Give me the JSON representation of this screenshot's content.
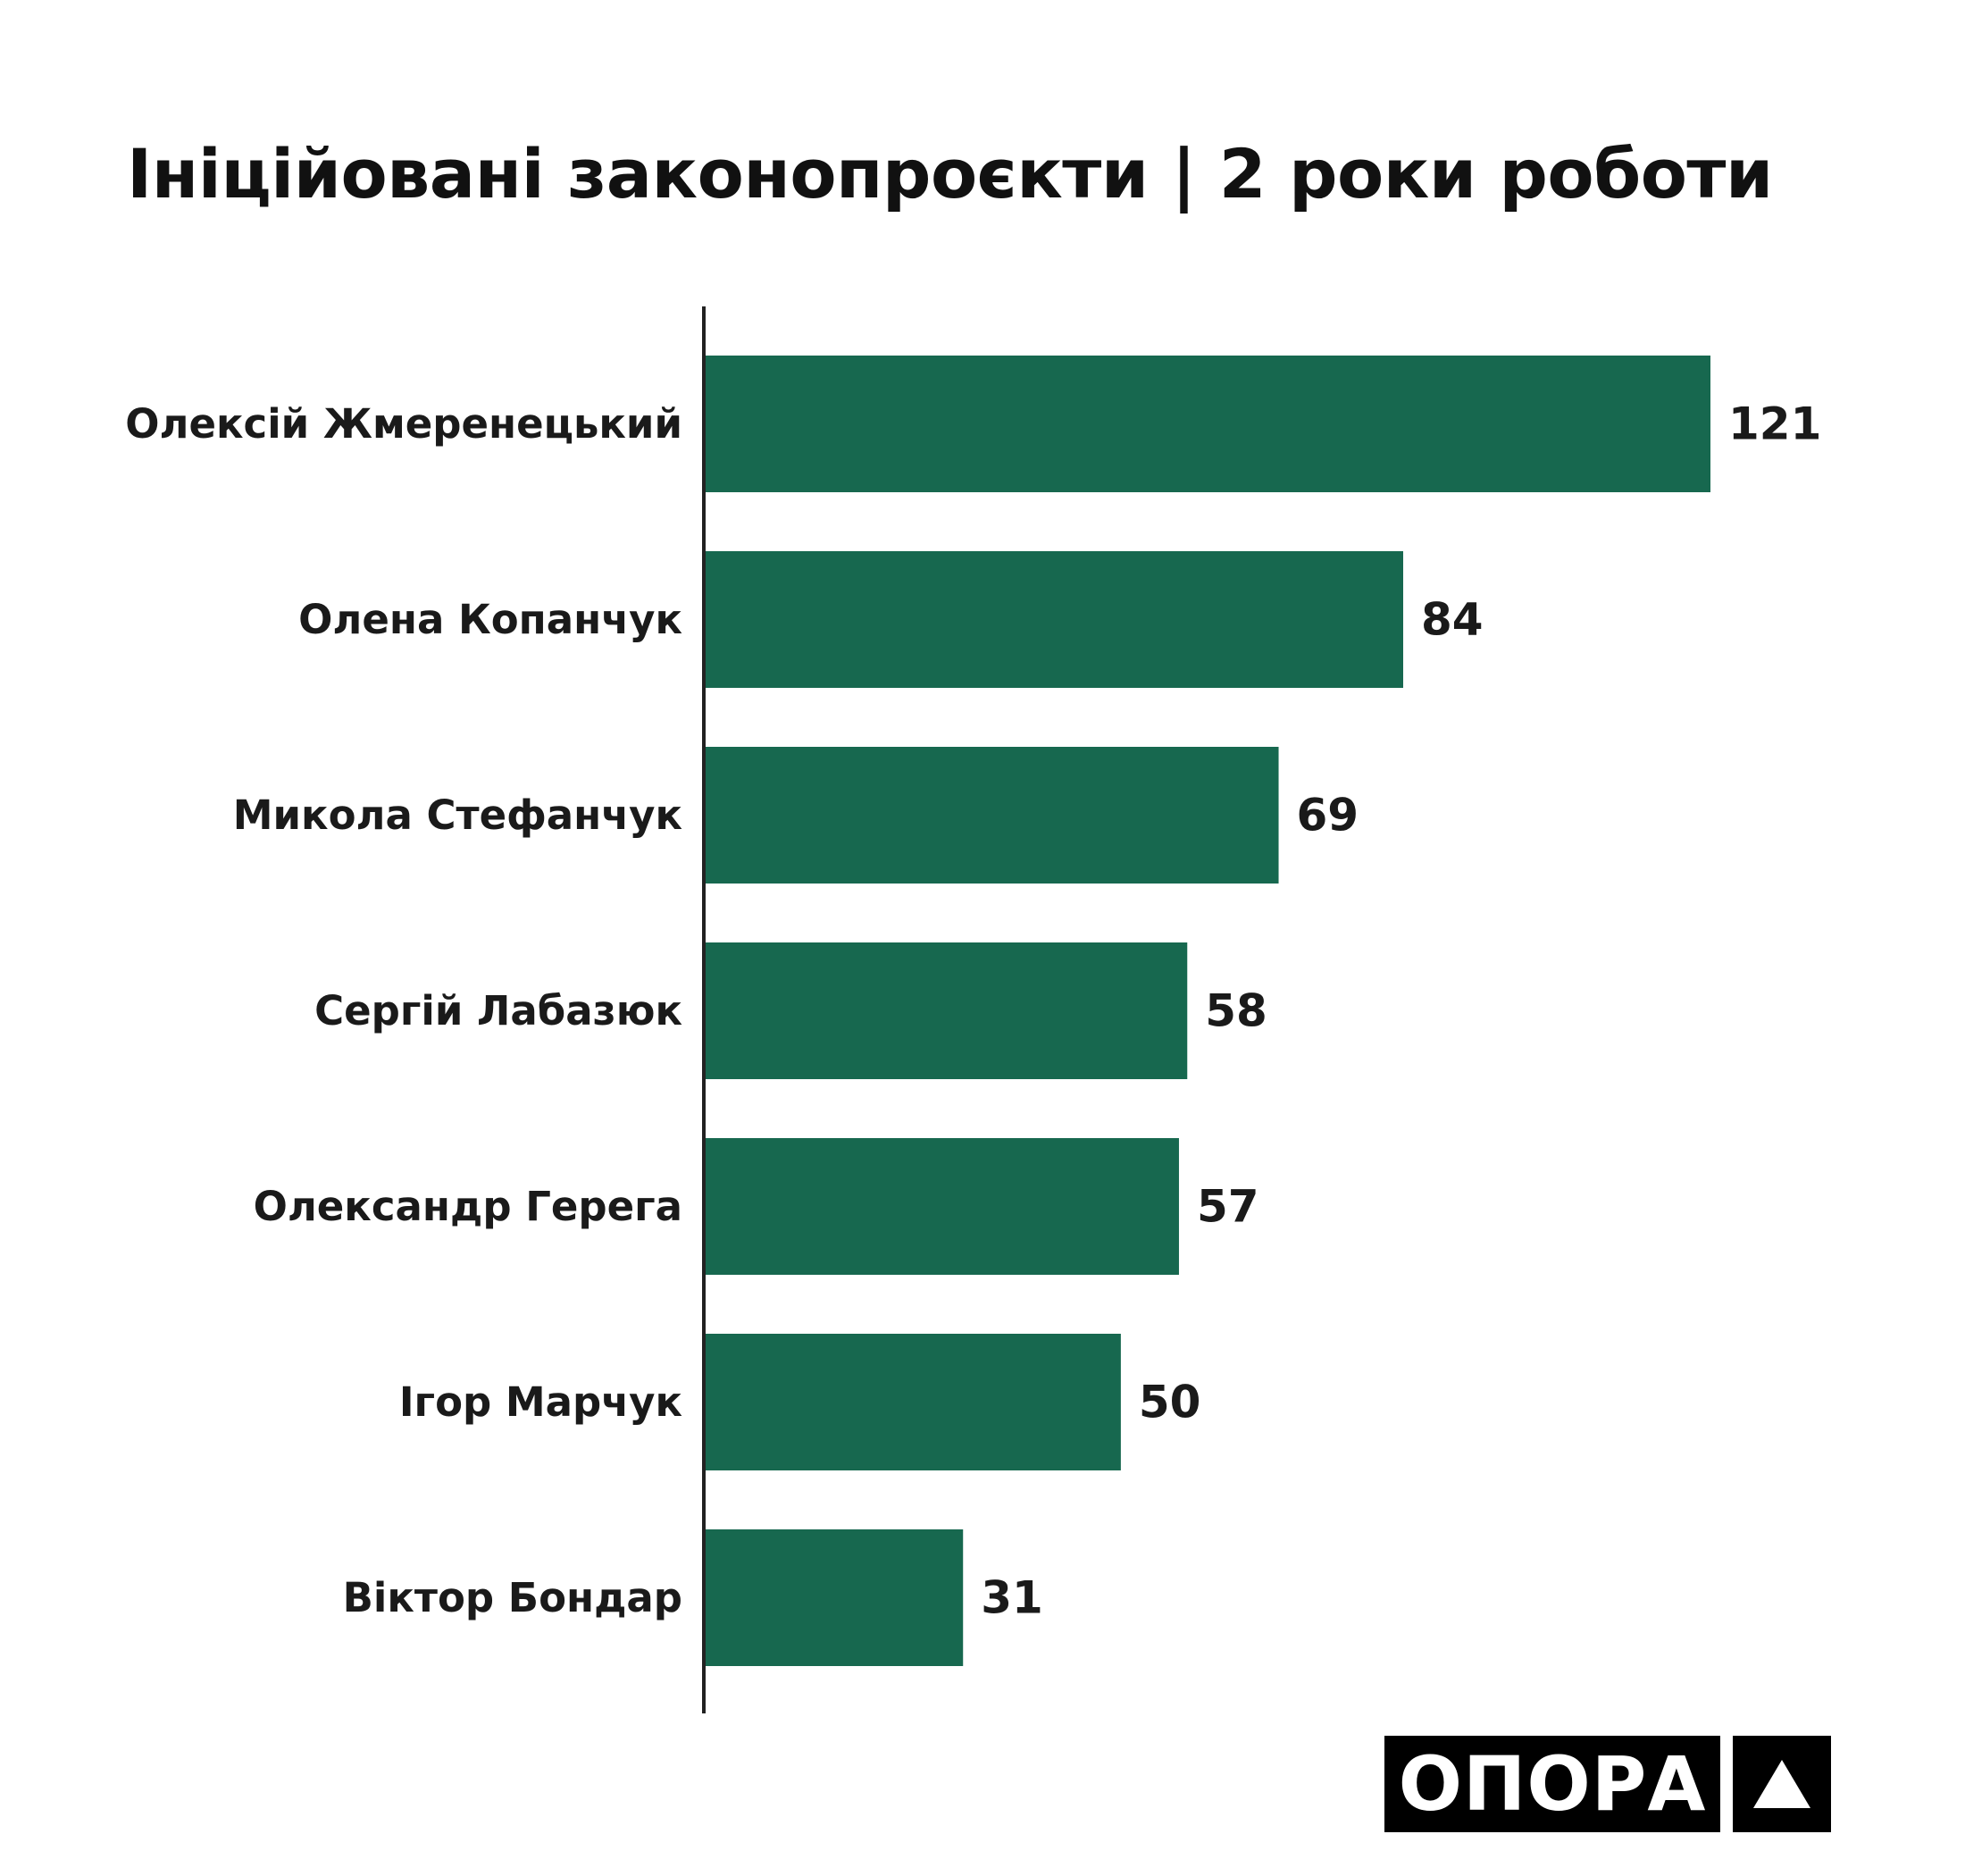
{
  "chart_data": {
    "type": "bar",
    "orientation": "horizontal",
    "title": "Ініційовані законопроєкти | 2 роки роботи",
    "categories": [
      "Олексій Жмеренецький",
      "Олена Копанчук",
      "Микола Стефанчук",
      "Сергій Лабазюк",
      "Олександр Герега",
      "Ігор Марчук",
      "Віктор Бондар"
    ],
    "values": [
      121,
      84,
      69,
      58,
      57,
      50,
      31
    ],
    "xlim": [
      0,
      121
    ],
    "data_labels": true,
    "grid": false,
    "bar_color": "#17684f",
    "axis_color": "#222222"
  },
  "logo": {
    "text": "ОПОРА",
    "mark": "triangle-icon"
  }
}
